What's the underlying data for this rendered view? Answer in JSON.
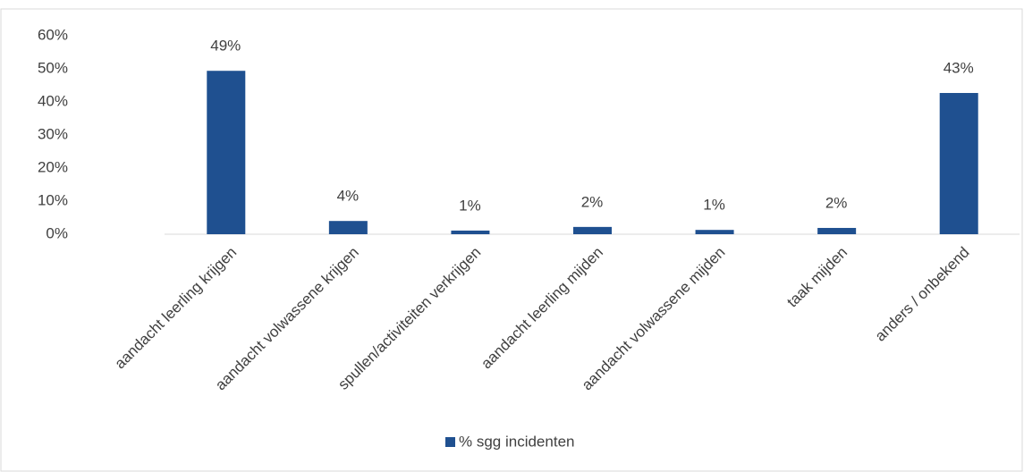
{
  "chart_data": {
    "type": "bar",
    "categories": [
      "aandacht leerling krijgen",
      "aandacht volwassene krijgen",
      "spullen/activiteiten verkrijgen",
      "aandacht leerling mijden",
      "aandacht volwassene mijden",
      "taak mijden",
      "anders / onbekend"
    ],
    "series": [
      {
        "name": "% sgg incidenten",
        "color": "#1f5090",
        "values": [
          49.4,
          4.0,
          1.1,
          2.2,
          1.3,
          1.9,
          42.7
        ],
        "value_labels": [
          "49%",
          "4%",
          "1%",
          "2%",
          "1%",
          "2%",
          "43%"
        ]
      }
    ],
    "ylim": [
      0,
      60
    ],
    "yticks": [
      {
        "value": 0,
        "label": "0%"
      },
      {
        "value": 10,
        "label": "10%"
      },
      {
        "value": 20,
        "label": "20%"
      },
      {
        "value": 30,
        "label": "30%"
      },
      {
        "value": 40,
        "label": "40%"
      },
      {
        "value": 50,
        "label": "50%"
      },
      {
        "value": 60,
        "label": "60%"
      }
    ],
    "grid": false,
    "legend": "bottom"
  }
}
